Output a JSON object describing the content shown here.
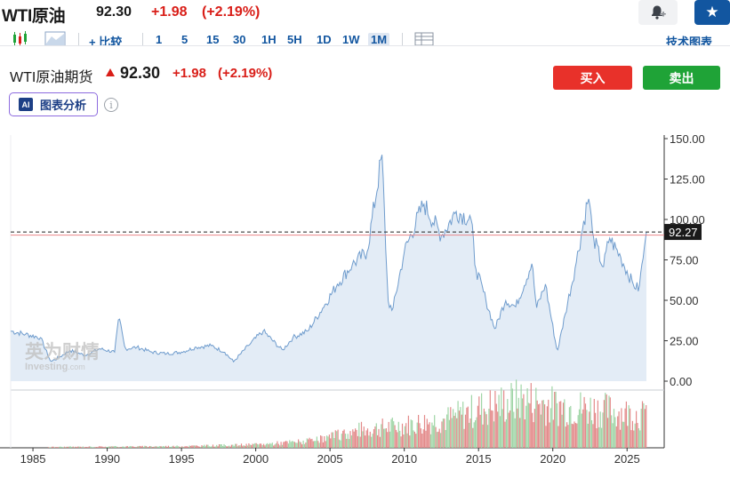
{
  "header": {
    "title": "WTI原油",
    "price": "92.30",
    "change": "+1.98",
    "change_pct": "(+2.19%)"
  },
  "toolbar": {
    "compare_label": "+ 比较",
    "intervals": [
      "1",
      "5",
      "15",
      "30",
      "1H",
      "5H",
      "1D",
      "1W",
      "1M"
    ],
    "active_interval": "1M",
    "tech_chart_label": "技术图表"
  },
  "instrument": {
    "name": "WTI原油期货",
    "price": "92.30",
    "change": "+1.98",
    "change_pct": "(+2.19%)"
  },
  "actions": {
    "buy_label": "买入",
    "sell_label": "卖出"
  },
  "ai": {
    "badge": "AI",
    "label": "图表分析"
  },
  "watermark": {
    "cn": "英为财情",
    "en": "Investing",
    "suffix": ".com"
  },
  "colors": {
    "up": "#d91e18",
    "down": "#1fa337",
    "line": "#6f9ccd",
    "area": "#e3ecf6",
    "brand": "#1256a0"
  },
  "chart_data": {
    "type": "area",
    "title": "",
    "xlabel": "",
    "ylabel": "",
    "y_ticks": [
      "150.00",
      "125.00",
      "100.00",
      "75.00",
      "50.00",
      "25.00",
      "0.00"
    ],
    "x_ticks": [
      "1985",
      "1990",
      "1995",
      "2000",
      "2005",
      "2010",
      "2015",
      "2020",
      "2025"
    ],
    "ylim": [
      0,
      150
    ],
    "xlim": [
      1983.5,
      2027.5
    ],
    "last_value_label": "92.27",
    "reference_line": 90.3,
    "series": [
      {
        "values": [
          [
            1983.5,
            31
          ],
          [
            1984.5,
            29
          ],
          [
            1985.5,
            27
          ],
          [
            1986.2,
            12
          ],
          [
            1986.8,
            15
          ],
          [
            1987.5,
            19
          ],
          [
            1988.5,
            16
          ],
          [
            1989.5,
            20
          ],
          [
            1990.5,
            18
          ],
          [
            1990.8,
            40
          ],
          [
            1991.2,
            20
          ],
          [
            1992,
            21
          ],
          [
            1993,
            18
          ],
          [
            1994,
            17
          ],
          [
            1995,
            18
          ],
          [
            1996,
            21
          ],
          [
            1997,
            22
          ],
          [
            1997.9,
            18
          ],
          [
            1998.5,
            12
          ],
          [
            1999.5,
            22
          ],
          [
            2000.5,
            31
          ],
          [
            2001.8,
            19
          ],
          [
            2002.5,
            27
          ],
          [
            2003.5,
            31
          ],
          [
            2004.5,
            45
          ],
          [
            2005.5,
            60
          ],
          [
            2006.5,
            72
          ],
          [
            2007.5,
            80
          ],
          [
            2008.5,
            140
          ],
          [
            2008.9,
            50
          ],
          [
            2009.2,
            43
          ],
          [
            2010,
            80
          ],
          [
            2011.3,
            110
          ],
          [
            2012.5,
            90
          ],
          [
            2013.5,
            105
          ],
          [
            2014.5,
            100
          ],
          [
            2014.8,
            70
          ],
          [
            2015.5,
            50
          ],
          [
            2016.1,
            32
          ],
          [
            2016.8,
            50
          ],
          [
            2017.5,
            46
          ],
          [
            2018.6,
            73
          ],
          [
            2018.9,
            45
          ],
          [
            2019.5,
            60
          ],
          [
            2020.3,
            18
          ],
          [
            2020.8,
            40
          ],
          [
            2021.5,
            70
          ],
          [
            2022.4,
            114
          ],
          [
            2022.7,
            90
          ],
          [
            2023.4,
            70
          ],
          [
            2023.8,
            89
          ],
          [
            2024.6,
            76
          ],
          [
            2025.4,
            60
          ],
          [
            2025.8,
            57
          ],
          [
            2026.3,
            92.27
          ]
        ]
      }
    ],
    "volume": {
      "start_year": 1986,
      "end_year": 2026.3,
      "shape": [
        [
          1986,
          1
        ],
        [
          1995,
          2
        ],
        [
          2000,
          4
        ],
        [
          2004,
          9
        ],
        [
          2007,
          22
        ],
        [
          2010,
          28
        ],
        [
          2013,
          36
        ],
        [
          2015,
          48
        ],
        [
          2018,
          60
        ],
        [
          2020,
          52
        ],
        [
          2023,
          48
        ],
        [
          2026,
          40
        ]
      ]
    }
  }
}
